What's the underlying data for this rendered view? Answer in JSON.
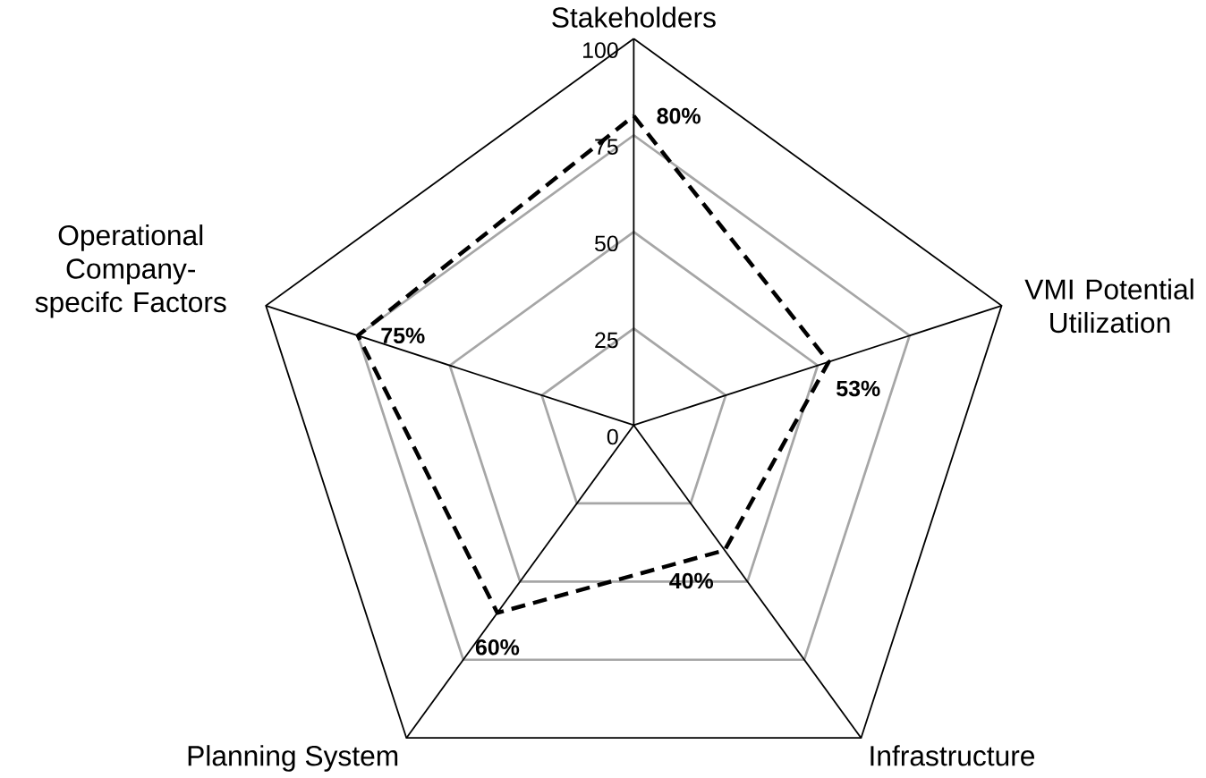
{
  "chart_data": {
    "type": "radar",
    "categories": [
      "Stakeholders",
      "VMI Potential Utilization",
      "Infrastructure",
      "Planning System",
      "Operational Company-specifc Factors"
    ],
    "series": [
      {
        "color": "#000000",
        "values": [
          80,
          53,
          40,
          60,
          75
        ],
        "value_labels": [
          "80%",
          "53%",
          "40%",
          "60%",
          "75%"
        ]
      }
    ],
    "ylim": [
      0,
      100
    ],
    "yticks": [
      0,
      25,
      50,
      75,
      100
    ],
    "grid": true,
    "line_style": "dashed"
  }
}
